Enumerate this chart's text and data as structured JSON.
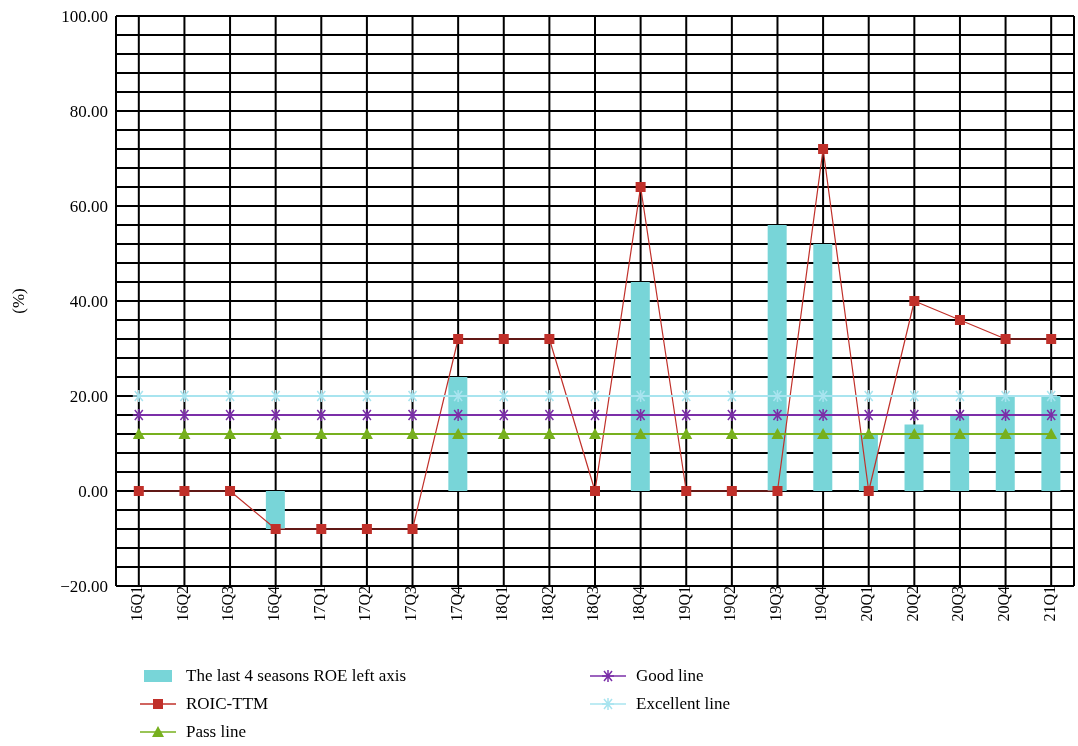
{
  "chart_data": {
    "type": "bar",
    "ylabel": "(%)",
    "categories": [
      "16Q1",
      "16Q2",
      "16Q3",
      "16Q4",
      "17Q1",
      "17Q2",
      "17Q3",
      "17Q4",
      "18Q1",
      "18Q2",
      "18Q3",
      "18Q4",
      "19Q1",
      "19Q2",
      "19Q3",
      "19Q4",
      "20Q1",
      "20Q2",
      "20Q3",
      "20Q4",
      "21Q1"
    ],
    "series": [
      {
        "name": "The last 4 seasons ROE left axis",
        "color": "#78d5d8",
        "values": [
          0,
          0,
          0,
          -8,
          0,
          0,
          0,
          24,
          0,
          0,
          0,
          44,
          0,
          0,
          56,
          52,
          12,
          14,
          16,
          20,
          20
        ]
      },
      {
        "name": "ROIC-TTM",
        "type": "line",
        "color": "#c0302a",
        "marker": "square",
        "values": [
          0,
          0,
          0,
          -8,
          -8,
          -8,
          -8,
          32,
          32,
          32,
          0,
          64,
          0,
          0,
          0,
          72,
          0,
          40,
          36,
          32,
          32
        ]
      },
      {
        "name": "Pass line",
        "type": "line",
        "color": "#77b01e",
        "marker": "triangle",
        "values": [
          12,
          12,
          12,
          12,
          12,
          12,
          12,
          12,
          12,
          12,
          12,
          12,
          12,
          12,
          12,
          12,
          12,
          12,
          12,
          12,
          12
        ]
      },
      {
        "name": "Good line",
        "type": "line",
        "color": "#7b2fa8",
        "marker": "cross",
        "values": [
          16,
          16,
          16,
          16,
          16,
          16,
          16,
          16,
          16,
          16,
          16,
          16,
          16,
          16,
          16,
          16,
          16,
          16,
          16,
          16,
          16
        ]
      },
      {
        "name": "Excellent line",
        "type": "line",
        "color": "#a8e4ef",
        "marker": "cross",
        "values": [
          20,
          20,
          20,
          20,
          20,
          20,
          20,
          20,
          20,
          20,
          20,
          20,
          20,
          20,
          20,
          20,
          20,
          20,
          20,
          20,
          20
        ]
      }
    ],
    "ylim": [
      -20,
      100
    ],
    "yticks": [
      {
        "value": -20,
        "label": "−20.00"
      },
      {
        "value": -16,
        "label": null
      },
      {
        "value": -12,
        "label": null
      },
      {
        "value": -8,
        "label": null
      },
      {
        "value": -4,
        "label": null
      },
      {
        "value": 0,
        "label": "0.00"
      },
      {
        "value": 4,
        "label": null
      },
      {
        "value": 8,
        "label": null
      },
      {
        "value": 12,
        "label": null
      },
      {
        "value": 16,
        "label": null
      },
      {
        "value": 20,
        "label": "20.00"
      },
      {
        "value": 24,
        "label": null
      },
      {
        "value": 28,
        "label": null
      },
      {
        "value": 32,
        "label": null
      },
      {
        "value": 36,
        "label": null
      },
      {
        "value": 40,
        "label": "40.00"
      },
      {
        "value": 44,
        "label": null
      },
      {
        "value": 48,
        "label": null
      },
      {
        "value": 52,
        "label": null
      },
      {
        "value": 56,
        "label": null
      },
      {
        "value": 60,
        "label": "60.00"
      },
      {
        "value": 64,
        "label": null
      },
      {
        "value": 68,
        "label": null
      },
      {
        "value": 72,
        "label": null
      },
      {
        "value": 76,
        "label": null
      },
      {
        "value": 80,
        "label": "80.00"
      },
      {
        "value": 84,
        "label": null
      },
      {
        "value": 88,
        "label": null
      },
      {
        "value": 92,
        "label": null
      },
      {
        "value": 96,
        "label": null
      },
      {
        "value": 100,
        "label": "100.00"
      }
    ],
    "grid": true,
    "legend": "bottom"
  }
}
